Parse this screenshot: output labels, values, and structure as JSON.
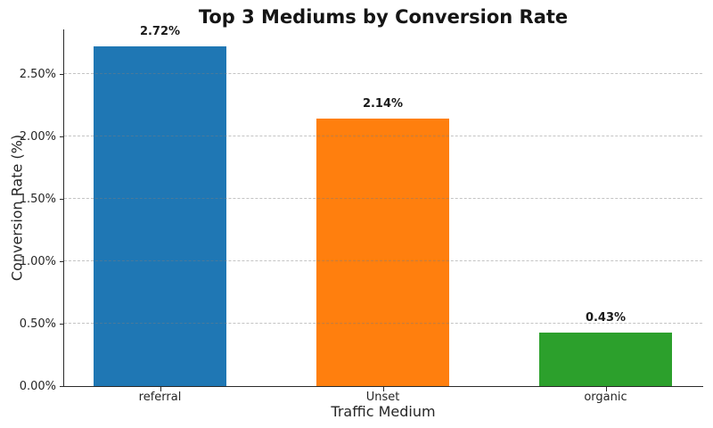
{
  "figure": {
    "background": "#ffffff",
    "text_color": "#262626",
    "spine_color": "#2b2b2b",
    "grid_style": "dashed horizontal, light gray, drawn over bars"
  },
  "chart_data": {
    "type": "bar",
    "title": "Top 3 Mediums by Conversion Rate",
    "xlabel": "Traffic Medium",
    "ylabel": "Conversion Rate (%)",
    "categories": [
      "referral",
      "Unset",
      "organic"
    ],
    "values": [
      2.72,
      2.14,
      0.43
    ],
    "value_labels": [
      "2.72%",
      "2.14%",
      "0.43%"
    ],
    "bar_colors": [
      "#1f77b4",
      "#ff7f0e",
      "#2ca02c"
    ],
    "y_ticks": [
      0.0,
      0.5,
      1.0,
      1.5,
      2.0,
      2.5
    ],
    "y_tick_labels": [
      "0.00%",
      "0.50%",
      "1.00%",
      "1.50%",
      "2.00%",
      "2.50%"
    ],
    "ylim": [
      0,
      2.856
    ],
    "grid": true,
    "legend": "none"
  }
}
